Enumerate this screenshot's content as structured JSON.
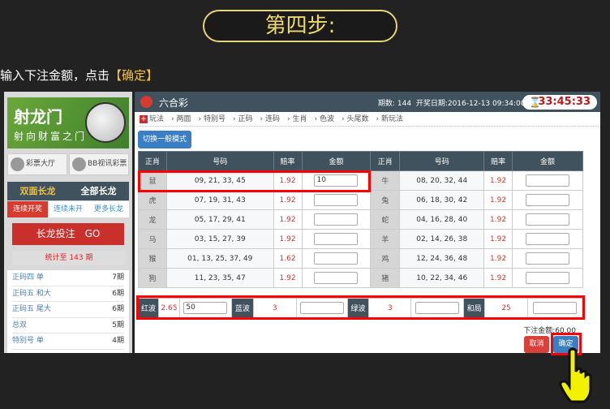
{
  "step_title": "第四步:",
  "instruction": {
    "text": "输入下注金额，点击",
    "highlight": "【确定】"
  },
  "sidebar": {
    "logo": {
      "name": "射龙门",
      "slogan": "射向财富之门"
    },
    "buttons": [
      {
        "label": "彩票大厅",
        "icon": "home-icon"
      },
      {
        "label": "BB视讯彩票",
        "icon": "camera-icon"
      }
    ],
    "tabs": [
      {
        "label": "双面长龙",
        "active": true
      },
      {
        "label": "全部长龙",
        "active": false
      }
    ],
    "subtabs": [
      {
        "label": "连续开奖",
        "active": true
      },
      {
        "label": "连续未开",
        "active": false
      },
      {
        "label": "更多长龙",
        "active": false
      }
    ],
    "banner": "长龙投注　GO",
    "stat": "统计至 143 期",
    "list": [
      [
        "正码四 单",
        "7期"
      ],
      [
        "正码五 和大",
        "6期"
      ],
      [
        "正码五 尾大",
        "6期"
      ],
      [
        "总双",
        "5期"
      ],
      [
        "特别号 单",
        "4期"
      ]
    ]
  },
  "header": {
    "title": "六合彩",
    "period": "期数: 144",
    "draw_date": "开奖日期:2016-12-13 09:34:00",
    "timer": "33:45:33"
  },
  "crumbs": [
    "玩法",
    "两面",
    "特别号",
    "正码",
    "连码",
    "生肖",
    "色波",
    "头尾数",
    "新玩法"
  ],
  "mode_button": "切换一般模式",
  "table": {
    "headers": [
      "正肖",
      "号码",
      "赔率",
      "金额",
      "正肖",
      "号码",
      "赔率",
      "金额"
    ],
    "rows": [
      {
        "l": [
          "鼠",
          "09, 21, 33, 45",
          "1.92",
          "10"
        ],
        "r": [
          "牛",
          "08, 20, 32, 44",
          "1.92",
          ""
        ]
      },
      {
        "l": [
          "虎",
          "07, 19, 31, 43",
          "1.92",
          ""
        ],
        "r": [
          "兔",
          "06, 18, 30, 42",
          "1.92",
          ""
        ]
      },
      {
        "l": [
          "龙",
          "05, 17, 29, 41",
          "1.92",
          ""
        ],
        "r": [
          "蛇",
          "04, 16, 28, 40",
          "1.92",
          ""
        ]
      },
      {
        "l": [
          "马",
          "03, 15, 27, 39",
          "1.92",
          ""
        ],
        "r": [
          "羊",
          "02, 14, 26, 38",
          "1.92",
          ""
        ]
      },
      {
        "l": [
          "猴",
          "01, 13, 25, 37, 49",
          "1.62",
          ""
        ],
        "r": [
          "鸡",
          "12, 24, 36, 48",
          "1.92",
          ""
        ]
      },
      {
        "l": [
          "狗",
          "11, 23, 35, 47",
          "1.92",
          ""
        ],
        "r": [
          "猪",
          "10, 22, 34, 46",
          "1.92",
          ""
        ]
      }
    ]
  },
  "waves": [
    {
      "label": "红波",
      "odds": "2.65",
      "amount": "50"
    },
    {
      "label": "蓝波",
      "odds": "3",
      "amount": ""
    },
    {
      "label": "绿波",
      "odds": "3",
      "amount": ""
    },
    {
      "label": "和局",
      "odds": "25",
      "amount": ""
    }
  ],
  "total": "下注金额:60.00",
  "cancel_label": "取消",
  "confirm_label": "确定",
  "colors": {
    "accent": "#f0c040",
    "header": "#3f525e",
    "odds": "#d03030",
    "highlight": "#ff0000"
  }
}
